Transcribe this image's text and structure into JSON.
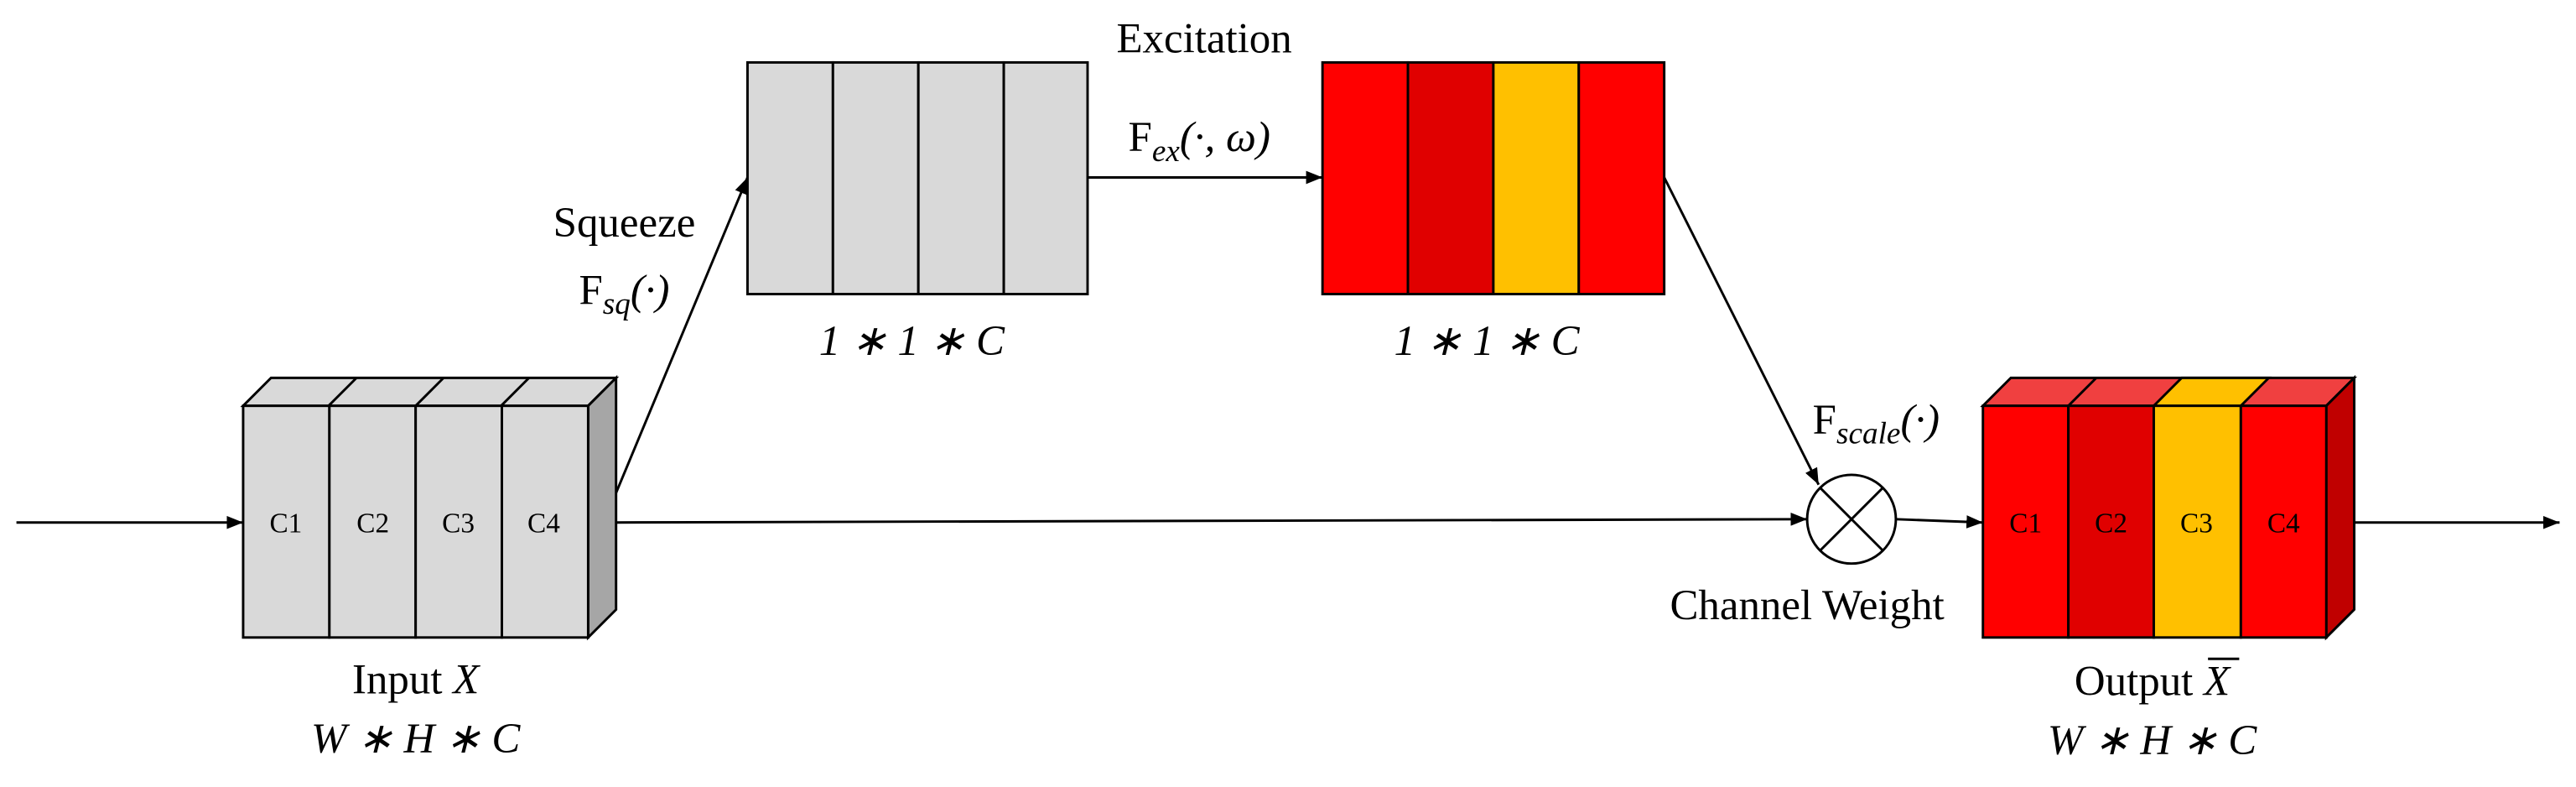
{
  "excitation": {
    "title": "Excitation",
    "function": {
      "symbol": "F",
      "subscript": "ex",
      "args": "(·, ω)"
    },
    "shape": "1 ∗ 1 ∗ C"
  },
  "squeeze": {
    "title": "Squeeze",
    "function": {
      "symbol": "F",
      "subscript": "sq",
      "args": "(·)"
    },
    "shape": "1 ∗ 1 ∗ C"
  },
  "scale": {
    "function": {
      "symbol": "F",
      "subscript": "scale",
      "args": "(·)"
    },
    "title": "Channel Weight"
  },
  "input": {
    "label": "Input",
    "symbol": "X",
    "shape": "W ∗ H ∗ C",
    "channels": [
      "C1",
      "C2",
      "C3",
      "C4"
    ]
  },
  "output": {
    "label": "Output",
    "symbol": "X",
    "shape": "W ∗ H ∗ C",
    "channels": [
      "C1",
      "C2",
      "C3",
      "C4"
    ]
  }
}
